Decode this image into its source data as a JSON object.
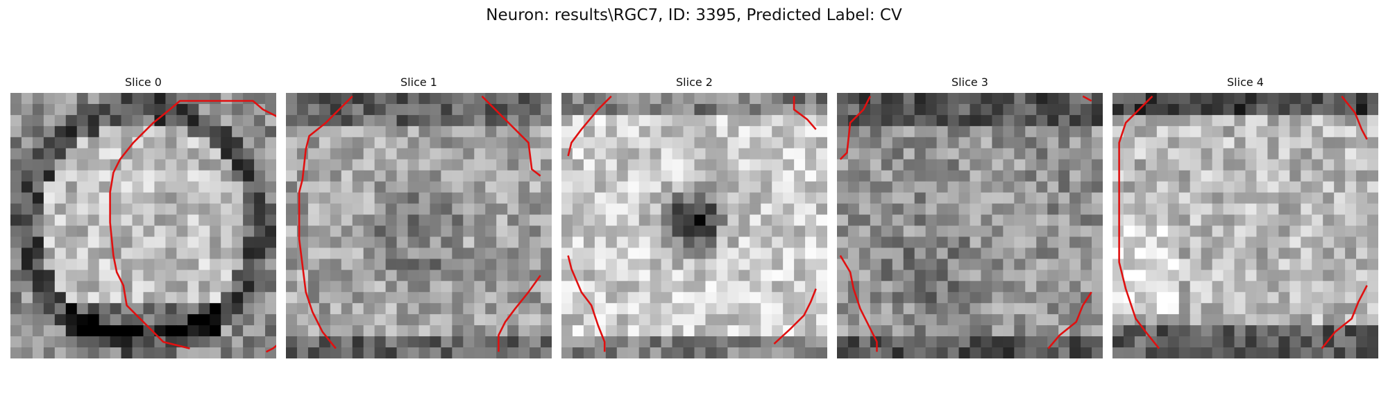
{
  "title": "Neuron: results\\RGC7, ID: 3395, Predicted Label: CV",
  "grid_size": 24,
  "contour_color": "#e01010",
  "panels": [
    {
      "label": "Slice 0",
      "pattern": "ring-blob"
    },
    {
      "label": "Slice 1",
      "pattern": "center-dim"
    },
    {
      "label": "Slice 2",
      "pattern": "dark-core"
    },
    {
      "label": "Slice 3",
      "pattern": "mottled"
    },
    {
      "label": "Slice 4",
      "pattern": "bright-band"
    }
  ]
}
